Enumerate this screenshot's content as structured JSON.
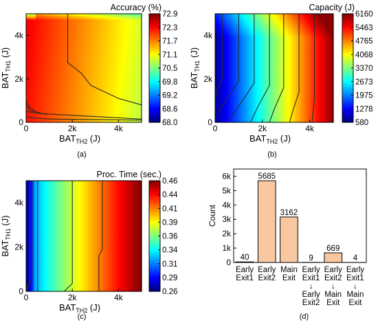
{
  "chart_data": [
    {
      "type": "heatmap",
      "panel_label": "(a)",
      "colorbar_title": "Accuracy (%)",
      "colorbar_ticks": [
        "72.9",
        "72.3",
        "71.7",
        "71.1",
        "70.5",
        "69.8",
        "69.2",
        "68.6",
        "68.0"
      ],
      "zlim": [
        68.0,
        72.9
      ],
      "xlabel_main": "BAT",
      "xlabel_sub": "TH2",
      "xlabel_unit": " (J)",
      "ylabel_main": "BAT",
      "ylabel_sub": "TH1",
      "ylabel_unit": " (J)",
      "x_ticks": [
        "0",
        "2k",
        "4k"
      ],
      "x_tick_values": [
        0,
        2000,
        4000
      ],
      "y_ticks": [
        "0",
        "2k",
        "4k"
      ],
      "y_tick_values": [
        0,
        2000,
        4000
      ],
      "xlim": [
        0,
        5000
      ],
      "ylim": [
        0,
        5000
      ]
    },
    {
      "type": "heatmap",
      "panel_label": "(b)",
      "colorbar_title": "Capacity (J)",
      "colorbar_ticks": [
        "6160",
        "5463",
        "4765",
        "4068",
        "3370",
        "2673",
        "1975",
        "1278",
        "580"
      ],
      "zlim": [
        580,
        6160
      ],
      "xlabel_main": "BAT",
      "xlabel_sub": "TH2",
      "xlabel_unit": " (J)",
      "ylabel_main": "BAT",
      "ylabel_sub": "TH1",
      "ylabel_unit": " (J)",
      "x_ticks": [
        "0",
        "2k",
        "4k"
      ],
      "x_tick_values": [
        0,
        2000,
        4000
      ],
      "y_ticks": [
        "0",
        "2k",
        "4k"
      ],
      "y_tick_values": [
        0,
        2000,
        4000
      ],
      "xlim": [
        0,
        5000
      ],
      "ylim": [
        0,
        5000
      ]
    },
    {
      "type": "heatmap",
      "panel_label": "(c)",
      "colorbar_title": "Proc. Time (sec.)",
      "colorbar_ticks": [
        "0.46",
        "0.44",
        "0.41",
        "0.39",
        "0.36",
        "0.34",
        "0.31",
        "0.29",
        "0.26"
      ],
      "zlim": [
        0.26,
        0.46
      ],
      "xlabel_main": "BAT",
      "xlabel_sub": "TH2",
      "xlabel_unit": " (J)",
      "ylabel_main": "BAT",
      "ylabel_sub": "TH1",
      "ylabel_unit": " (J)",
      "x_ticks": [
        "0",
        "2k",
        "4k"
      ],
      "x_tick_values": [
        0,
        2000,
        4000
      ],
      "y_ticks": [
        "0",
        "2k",
        "4k"
      ],
      "y_tick_values": [
        0,
        2000,
        4000
      ],
      "xlim": [
        0,
        5000
      ],
      "ylim": [
        0,
        5000
      ]
    },
    {
      "type": "bar",
      "panel_label": "(d)",
      "ylabel": "Count",
      "ylim": [
        0,
        6500
      ],
      "y_ticks": [
        "0",
        "1k",
        "2k",
        "3k",
        "4k",
        "5k",
        "6k"
      ],
      "y_tick_values": [
        0,
        1000,
        2000,
        3000,
        4000,
        5000,
        6000
      ],
      "categories": [
        [
          "Early",
          "Exit1"
        ],
        [
          "Early",
          "Exit2"
        ],
        [
          "Main",
          "Exit"
        ],
        [
          "Early",
          "Exit1",
          "↓",
          "Early",
          "Exit2"
        ],
        [
          "Early",
          "Exit2",
          "↓",
          "Main",
          "Exit"
        ],
        [
          "Early",
          "Exit1",
          "↓",
          "Main",
          "Exit"
        ]
      ],
      "values": [
        40,
        5685,
        3162,
        9,
        669,
        4
      ],
      "value_labels": [
        "40",
        "5685",
        "3162",
        "9",
        "669",
        "4"
      ],
      "bar_color": "#f8c9a0",
      "bar_edge": "#000000"
    }
  ]
}
